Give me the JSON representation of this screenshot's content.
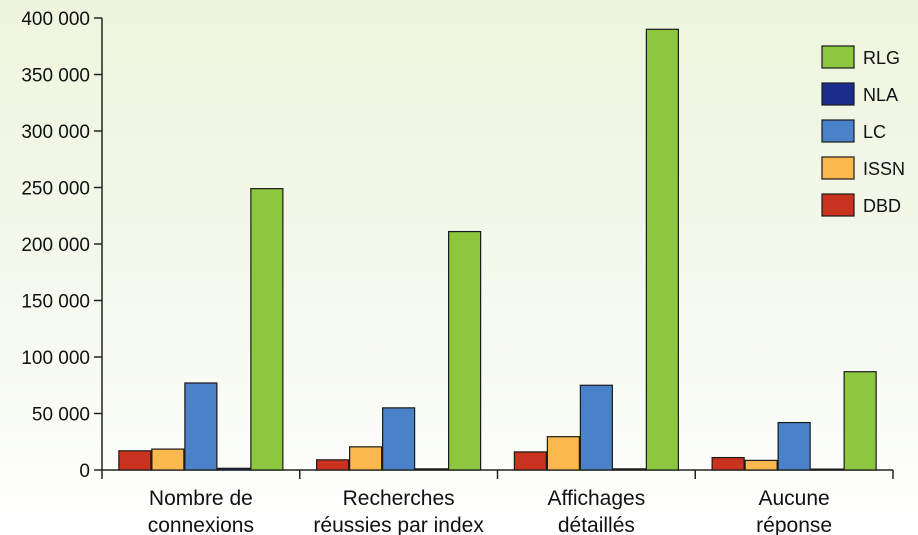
{
  "chart_data": {
    "type": "bar",
    "categories": [
      [
        "Nombre de",
        "connexions"
      ],
      [
        "Recherches",
        "réussies par index"
      ],
      [
        "Affichages",
        "détaillés"
      ],
      [
        "Aucune",
        "réponse"
      ]
    ],
    "series": [
      {
        "name": "DBD",
        "color": "#c8321e",
        "values": [
          17000,
          9000,
          16000,
          11000
        ]
      },
      {
        "name": "ISSN",
        "color": "#fbb84e",
        "values": [
          18500,
          20500,
          29500,
          8500
        ]
      },
      {
        "name": "LC",
        "color": "#4a82c9",
        "values": [
          77000,
          55000,
          75000,
          42000
        ]
      },
      {
        "name": "NLA",
        "color": "#1b2d8c",
        "values": [
          1500,
          1000,
          1000,
          800
        ]
      },
      {
        "name": "RLG",
        "color": "#8dc63f",
        "values": [
          249000,
          211000,
          390000,
          87000
        ]
      }
    ],
    "legend_order": [
      "RLG",
      "NLA",
      "LC",
      "ISSN",
      "DBD"
    ],
    "y_ticks": [
      0,
      50000,
      100000,
      150000,
      200000,
      250000,
      300000,
      350000,
      400000
    ],
    "y_tick_labels": [
      "0",
      "50 000",
      "100 000",
      "150 000",
      "200 000",
      "250 000",
      "300 000",
      "350 000",
      "400 000"
    ],
    "ylim": [
      0,
      400000
    ],
    "grid": false,
    "legend_position": "right"
  }
}
